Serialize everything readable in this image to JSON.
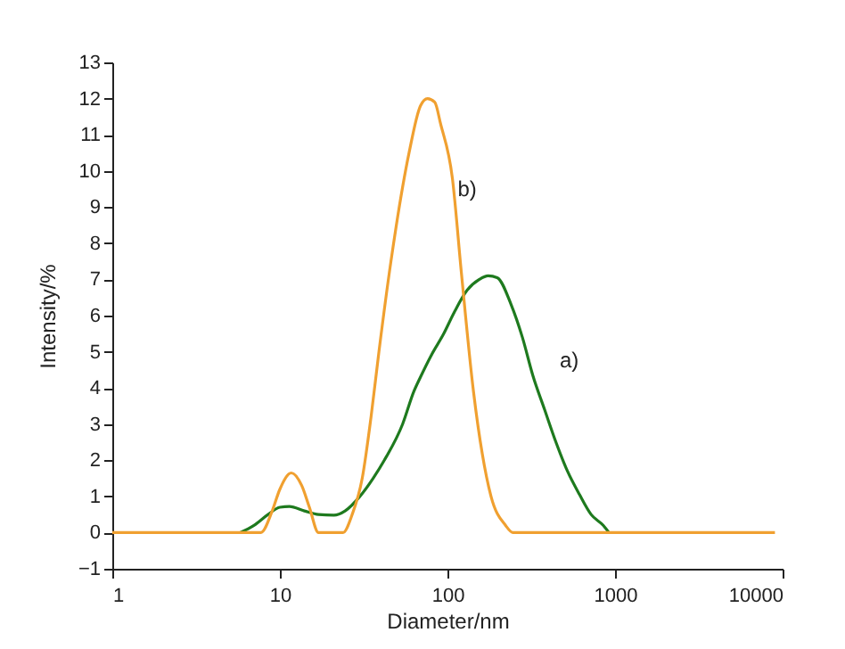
{
  "chart_data": {
    "type": "line",
    "xlabel": "Diameter/nm",
    "ylabel": "Intensity/%",
    "log": "x",
    "xlim": [
      1,
      10000
    ],
    "xticks": [
      1,
      10,
      100,
      1000,
      10000
    ],
    "ylim": [
      -1,
      13
    ],
    "yticks": [
      -1,
      0,
      1,
      2,
      3,
      4,
      5,
      6,
      7,
      8,
      9,
      10,
      11,
      12,
      13
    ],
    "grid": false,
    "legend": false,
    "marker": "none",
    "line_style": "solid",
    "series": [
      {
        "color": "#1e7a1e",
        "x": [
          5.8,
          7,
          8.5,
          10,
          11.4,
          14,
          17,
          21,
          24.5,
          30,
          36,
          42,
          54,
          63,
          69,
          80,
          95,
          110,
          131,
          155,
          175,
          198,
          240,
          280,
          323,
          380,
          444,
          520,
          614,
          720,
          850,
          920
        ],
        "values": [
          0,
          0.2,
          0.5,
          0.7,
          0.72,
          0.6,
          0.5,
          0.48,
          0.6,
          1.0,
          1.5,
          2.0,
          3.0,
          3.9,
          4.3,
          4.9,
          5.5,
          6.1,
          6.7,
          7.0,
          7.1,
          7.05,
          6.3,
          5.4,
          4.35,
          3.4,
          2.5,
          1.7,
          1.05,
          0.5,
          0.2,
          0
        ]
      },
      {
        "color": "#f0a030",
        "x": [
          1,
          7.7,
          9,
          10,
          11.7,
          13.5,
          15,
          17,
          23.8,
          27,
          31,
          35,
          39,
          46,
          59,
          69,
          76,
          84,
          91,
          107,
          121,
          143,
          182,
          222,
          246,
          9000
        ],
        "values": [
          0,
          0,
          0.6,
          1.2,
          1.65,
          1.3,
          0.7,
          0,
          0,
          0.5,
          1.5,
          3.2,
          5,
          7.5,
          10.5,
          11.8,
          12.0,
          11.9,
          11.3,
          9.8,
          7.2,
          3.9,
          1.0,
          0.2,
          0,
          0
        ]
      }
    ],
    "annotations": [
      {
        "text": "b)",
        "x": 115,
        "y": 9.5
      },
      "a)"
    ]
  }
}
